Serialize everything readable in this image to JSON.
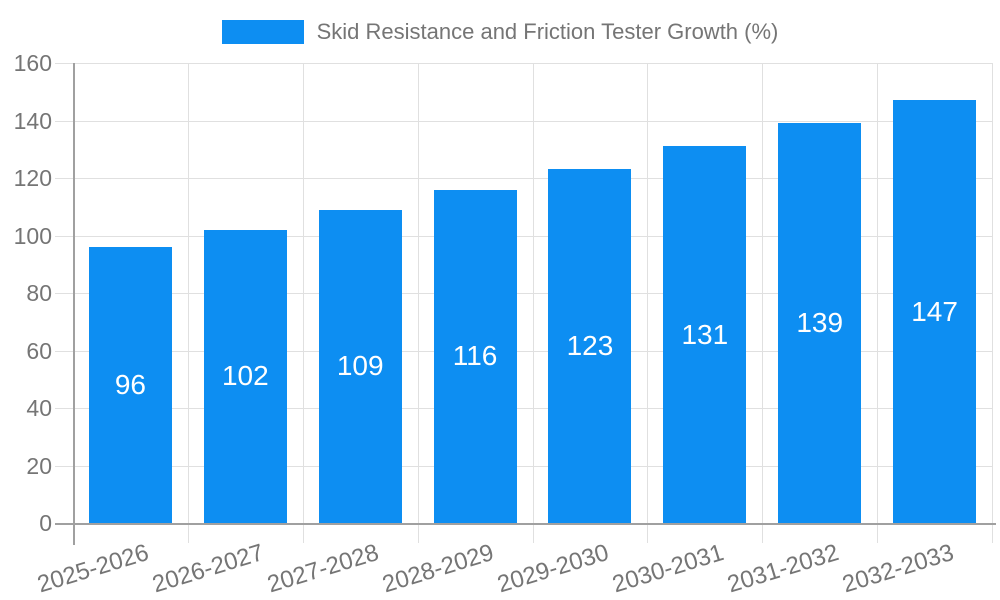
{
  "legend": {
    "label": "Skid Resistance and Friction Tester Growth (%)"
  },
  "colors": {
    "bar": "#0D8EF2",
    "grid": "#E0E0E0",
    "axis": "#A0A0A0",
    "tick_label": "#757575",
    "bar_label": "#FFFFFF",
    "background": "#FFFFFF"
  },
  "chart_data": {
    "type": "bar",
    "title": "Skid Resistance and Friction Tester Growth (%)",
    "categories": [
      "2025-2026",
      "2026-2027",
      "2027-2028",
      "2028-2029",
      "2029-2030",
      "2030-2031",
      "2031-2032",
      "2032-2033"
    ],
    "values": [
      96,
      102,
      109,
      116,
      123,
      131,
      139,
      147
    ],
    "xlabel": "",
    "ylabel": "",
    "ylim": [
      0,
      160
    ],
    "yticks": [
      0,
      20,
      40,
      60,
      80,
      100,
      120,
      140,
      160
    ],
    "grid": true,
    "legend_position": "top",
    "value_label_position": "inside-middle",
    "xtick_rotation_deg": -17
  }
}
